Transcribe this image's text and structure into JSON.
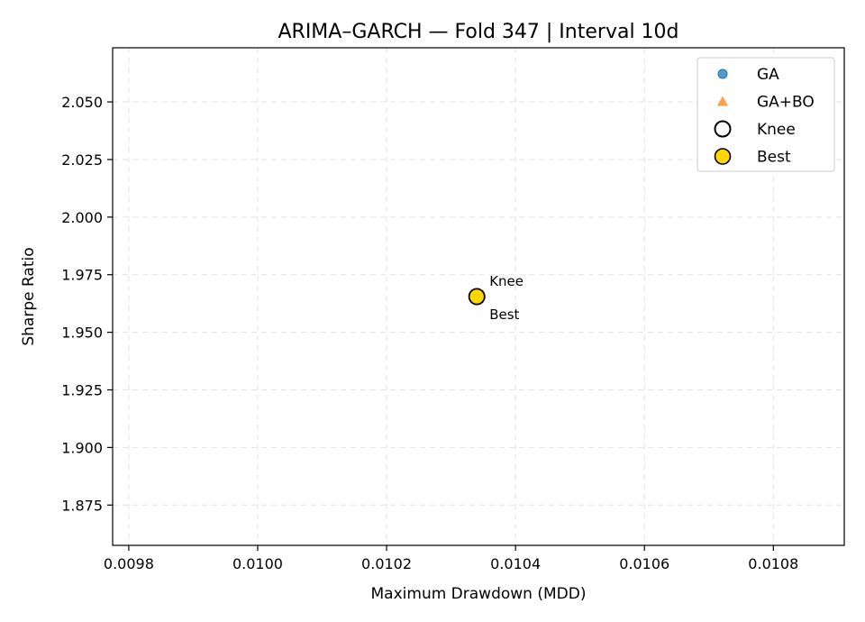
{
  "chart_data": {
    "type": "scatter",
    "title": "ARIMA–GARCH — Fold 347 | Interval 10d",
    "xlabel": "Maximum Drawdown (MDD)",
    "ylabel": "Sharpe Ratio",
    "xlim": [
      0.009775,
      0.01091
    ],
    "ylim": [
      1.8575,
      2.0735
    ],
    "xticks": [
      0.0098,
      0.01,
      0.0102,
      0.0104,
      0.0106,
      0.0108
    ],
    "xtick_labels": [
      "0.0098",
      "0.0100",
      "0.0102",
      "0.0104",
      "0.0106",
      "0.0108"
    ],
    "yticks": [
      1.875,
      1.9,
      1.925,
      1.95,
      1.975,
      2.0,
      2.025,
      2.05
    ],
    "ytick_labels": [
      "1.875",
      "1.900",
      "1.925",
      "1.950",
      "1.975",
      "2.000",
      "2.025",
      "2.050"
    ],
    "grid": true,
    "legend_position": "top-right",
    "series": [
      {
        "name": "GA",
        "marker": "circle",
        "color": "#1f77b4",
        "points": []
      },
      {
        "name": "GA+BO",
        "marker": "triangle",
        "color": "#ff7f0e",
        "points": []
      },
      {
        "name": "Knee",
        "marker": "hollow-circle",
        "color": "#000000",
        "points": [
          {
            "x": 0.01034,
            "y": 1.9655
          }
        ]
      },
      {
        "name": "Best",
        "marker": "filled-circle",
        "color": "#ffd700",
        "points": [
          {
            "x": 0.01034,
            "y": 1.9655
          }
        ]
      }
    ],
    "annotations": [
      {
        "text": "Knee",
        "x": 0.01034,
        "y": 1.9655,
        "placement": "above-right"
      },
      {
        "text": "Best",
        "x": 0.01034,
        "y": 1.9655,
        "placement": "below-right"
      }
    ]
  }
}
